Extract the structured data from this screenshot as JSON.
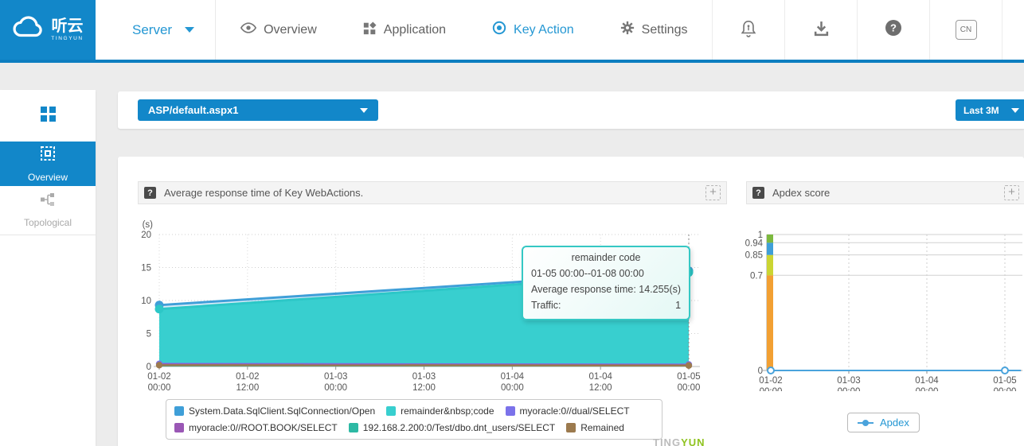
{
  "brand": {
    "name_cn": "听云",
    "name_en": "TINGYUN"
  },
  "topnav": {
    "product_label": "Server",
    "items": [
      {
        "label": "Overview"
      },
      {
        "label": "Application"
      },
      {
        "label": "Key Action"
      },
      {
        "label": "Settings"
      }
    ],
    "language": "CN"
  },
  "icons": {
    "help_glyph": "?"
  },
  "sidebar": {
    "items": [
      {
        "label": ""
      },
      {
        "label": "Overview"
      },
      {
        "label": "Topological"
      }
    ]
  },
  "controls": {
    "webaction_select": "ASP/default.aspx1",
    "time_range": "Last 3M"
  },
  "panel_chrome": {
    "help_glyph": "?",
    "expand_glyph": "+"
  },
  "tooltip": {
    "title": "remainder code",
    "period": "01-05 00:00--01-08 00:00",
    "metric_label": "Average response time:",
    "metric_value": "14.255(s)",
    "traffic_label": "Traffic:",
    "traffic_value": "1"
  },
  "watermark": {
    "part1": "TING",
    "part2": "YUN"
  },
  "chart_data": [
    {
      "type": "area",
      "title": "Average response time of Key WebActions.",
      "ylabel": "(s)",
      "xlabel": "",
      "ylim": [
        0,
        20
      ],
      "yticks": [
        0,
        5,
        10,
        15,
        20
      ],
      "x": [
        "01-02 00:00",
        "01-02 12:00",
        "01-03 00:00",
        "01-03 12:00",
        "01-04 00:00",
        "01-04 12:00",
        "01-05 00:00"
      ],
      "crosshair_x": "01-05 00:00",
      "fill_between": {
        "upper": 0,
        "lower": 1,
        "color": "rgba(170,210,240,0.45)"
      },
      "series": [
        {
          "name": "System.Data.SqlClient.SqlConnection/Open",
          "color": "#3f9fd8",
          "points": [
            {
              "x": "01-02 00:00",
              "y": 9.3
            },
            {
              "x": "01-05 00:00",
              "y": 14.5
            }
          ],
          "marker": true,
          "width": 3
        },
        {
          "name": "remainder&nbsp;code",
          "color": "#2cc7c7",
          "fill": "#38cfcf",
          "points": [
            {
              "x": "01-02 00:00",
              "y": 8.7
            },
            {
              "x": "01-05 00:00",
              "y": 14.255
            }
          ],
          "marker": true,
          "width": 3
        },
        {
          "name": "myoracle:0//dual/SELECT",
          "color": "#7b72ea",
          "points": [
            {
              "x": "01-02 00:00",
              "y": 0.4
            },
            {
              "x": "01-05 00:00",
              "y": 0.3
            }
          ],
          "marker": true,
          "width": 2.5
        },
        {
          "name": "myoracle:0//ROOT.BOOK/SELECT",
          "color": "#9a57b5",
          "points": [
            {
              "x": "01-02 00:00",
              "y": 0.3
            },
            {
              "x": "01-05 00:00",
              "y": 0.2
            }
          ],
          "marker": false,
          "width": 2.5
        },
        {
          "name": "192.168.2.200:0/Test/dbo.dnt_users/SELECT",
          "color": "#2db9a4",
          "points": [
            {
              "x": "01-02 00:00",
              "y": 0.1
            },
            {
              "x": "01-05 00:00",
              "y": 0.1
            }
          ],
          "marker": false,
          "width": 2
        },
        {
          "name": "Remained",
          "color": "#9c7a4e",
          "points": [
            {
              "x": "01-02 00:00",
              "y": 0.2
            },
            {
              "x": "01-05 00:00",
              "y": 0.15
            }
          ],
          "marker": true,
          "width": 2.5
        }
      ]
    },
    {
      "type": "line",
      "title": "Apdex score",
      "ylabel": "",
      "xlabel": "",
      "ylim": [
        0,
        1
      ],
      "yticks": [
        0,
        0.7,
        0.85,
        0.94,
        1
      ],
      "x": [
        "01-02 00:00",
        "01-03 00:00",
        "01-04 00:00",
        "01-05 00:00"
      ],
      "threshold_bar": {
        "x": "01-02 00:00",
        "width": 8,
        "bands": [
          {
            "from": 0,
            "to": 0.7,
            "color": "#f2a033"
          },
          {
            "from": 0.7,
            "to": 0.85,
            "color": "#cbd532"
          },
          {
            "from": 0.85,
            "to": 0.94,
            "color": "#3f9fd8"
          },
          {
            "from": 0.94,
            "to": 1,
            "color": "#7cb93e"
          }
        ]
      },
      "series": [
        {
          "name": "Apdex",
          "color": "#4aa3dc",
          "points": [
            {
              "x": "01-02 00:00",
              "y": 0
            },
            {
              "x": "01-05 00:00",
              "y": 0
            }
          ],
          "marker": "hollow",
          "width": 2
        }
      ]
    }
  ]
}
